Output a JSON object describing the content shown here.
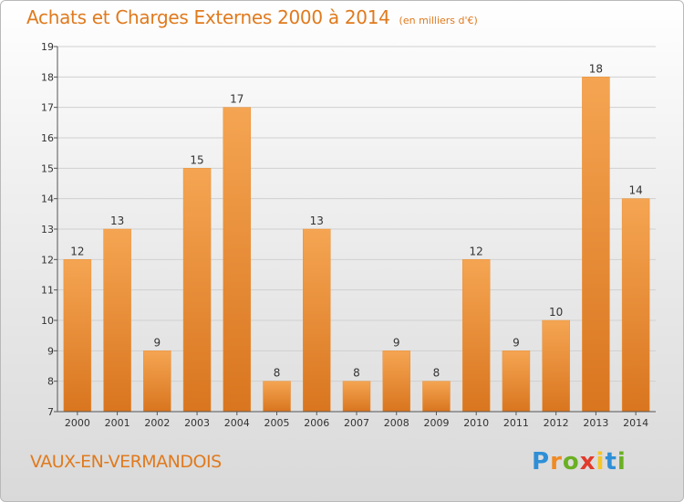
{
  "header": {
    "title": "Achats et Charges Externes 2000 à 2014",
    "unit": "(en milliers d'€)"
  },
  "footer": {
    "commune": "VAUX-EN-VERMANDOIS",
    "logo": "Proxiti",
    "logo_colors": [
      "#2f8fd6",
      "#f08a24",
      "#6ab023",
      "#e23a2b",
      "#f6c623",
      "#2f8fd6",
      "#6ab023"
    ]
  },
  "chart_data": {
    "type": "bar",
    "title": "Achats et Charges Externes 2000 à 2014",
    "subtitle": "(en milliers d'€)",
    "categories": [
      "2000",
      "2001",
      "2002",
      "2003",
      "2004",
      "2005",
      "2006",
      "2007",
      "2008",
      "2009",
      "2010",
      "2011",
      "2012",
      "2013",
      "2014"
    ],
    "values": [
      12,
      13,
      9,
      15,
      17,
      8,
      13,
      8,
      9,
      8,
      12,
      9,
      10,
      18,
      14
    ],
    "ylim": [
      7,
      19
    ],
    "yticks": [
      7,
      8,
      9,
      10,
      11,
      12,
      13,
      14,
      15,
      16,
      17,
      18,
      19
    ],
    "grid": "horizontal",
    "bar_color_top": "#f5a552",
    "bar_color_bottom": "#d9751f"
  }
}
